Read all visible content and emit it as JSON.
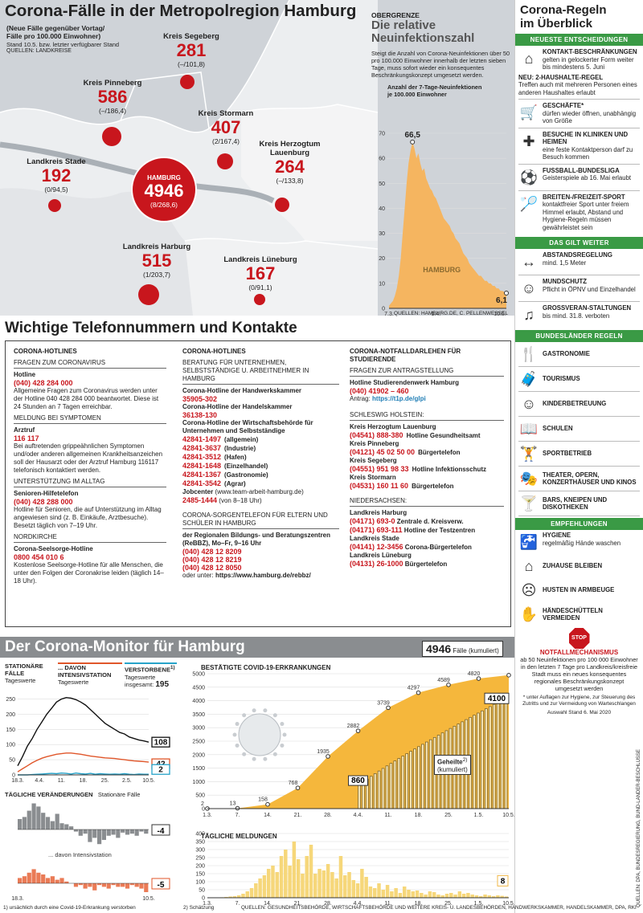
{
  "map": {
    "title": "Corona-Fälle in der Metropolregion Hamburg",
    "subtitle1": "(Neue Fälle gegenüber Vortag/",
    "subtitle2": "Fälle pro 100.000 Einwohner)",
    "stand": "Stand 10.5. bzw. letzter verfügbarer Stand",
    "source": "QUELLEN: LANDKREISE",
    "districts": [
      {
        "name": "Kreis Segeberg",
        "count": "281",
        "change": "(–/101,8)"
      },
      {
        "name": "Kreis Pinneberg",
        "count": "586",
        "change": "(–/186,4)"
      },
      {
        "name": "Kreis Stormarn",
        "count": "407",
        "change": "(2/167,4)"
      },
      {
        "name": "Kreis Herzogtum",
        "name2": "Lauenburg",
        "count": "264",
        "change": "(–/133,8)"
      },
      {
        "name": "Landkreis Stade",
        "count": "192",
        "change": "(0/94,5)"
      },
      {
        "name": "HAMBURG",
        "count": "4946",
        "change": "(8/268,6)"
      },
      {
        "name": "Landkreis Harburg",
        "count": "515",
        "change": "(1/203,7)"
      },
      {
        "name": "Landkreis Lüneburg",
        "count": "167",
        "change": "(0/91,1)"
      }
    ]
  },
  "incidence": {
    "kicker": "OBERGRENZE",
    "title1": "Die relative",
    "title2": "Neuinfektionszahl",
    "text": "Steigt die Anzahl von Corona-Neuinfektionen über 50 pro 100.000 Einwohner innerhalb der letzten sieben Tage, muss sofort wieder ein konsequentes Beschränkungskonzept umgesetzt werden.",
    "axis_label1": "Anzahl der 7-Tage-Neuinfektionen",
    "axis_label2": "je 100.000 Einwohner",
    "peak": "66,5",
    "last": "6,1",
    "area_label": "HAMBURG",
    "source": "QUELLEN: HAMBURG.DE, C. PELLENWESSEL"
  },
  "rules": {
    "title1": "Corona-Regeln",
    "title2": "im Überblick",
    "h_new": "NEUESTE ENTSCHEIDUNGEN",
    "items_new": [
      {
        "icon": "houses-icon",
        "title": "KONTAKT-BESCHRÄNKUNGEN",
        "text": "gelten in gelockerter Form weiter bis mindestens 5. Juni"
      },
      {
        "icon": "",
        "title": "NEU: 2-HAUSHALTE-REGEL",
        "text": "Treffen auch mit mehreren Personen eines anderen Haushaltes erlaubt"
      },
      {
        "icon": "cart-icon",
        "title": "GESCHÄFTE*",
        "text": "dürfen wieder öffnen, unabhängig von Größe"
      },
      {
        "icon": "hospital-icon",
        "title": "BESUCHE IN KLINIKEN UND HEIMEN",
        "text": "eine feste Kontaktperson darf zu Besuch kommen"
      },
      {
        "icon": "soccer-icon",
        "title": "FUSSBALL-BUNDESLIGA",
        "text": "Geisterspiele ab 16. Mai erlaubt"
      },
      {
        "icon": "badminton-icon",
        "title": "BREITEN-/FREIZEIT-SPORT",
        "text": "kontaktfreier Sport unter freiem Himmel erlaubt, Abstand und Hygiene-Regeln müssen gewährleistet sein"
      }
    ],
    "h_still": "DAS GILT WEITER",
    "items_still": [
      {
        "icon": "distance-icon",
        "title": "ABSTANDSREGELUNG",
        "text": "mind. 1,5 Meter"
      },
      {
        "icon": "mask-icon",
        "title": "MUNDSCHUTZ",
        "text": "Pflicht in ÖPNV und Einzelhandel"
      },
      {
        "icon": "crowd-icon",
        "title": "GROSSVERAN-STALTUNGEN",
        "text": "bis mind. 31.8. verboten"
      }
    ],
    "h_states": "BUNDESLÄNDER REGELN",
    "states": [
      {
        "icon": "dining-icon",
        "label": "GASTRONOMIE"
      },
      {
        "icon": "suitcase-icon",
        "label": "TOURISMUS"
      },
      {
        "icon": "child-icon",
        "label": "KINDERBETREUUNG"
      },
      {
        "icon": "book-icon",
        "label": "SCHULEN"
      },
      {
        "icon": "gym-icon",
        "label": "SPORTBETRIEB"
      },
      {
        "icon": "theater-icon",
        "label": "THEATER, OPERN, KONZERTHÄUSER UND KINOS"
      },
      {
        "icon": "cocktail-icon",
        "label": "BARS, KNEIPEN UND DISKOTHEKEN"
      }
    ],
    "h_recommend": "EMPFEHLUNGEN",
    "recommend": [
      {
        "icon": "handwash-icon",
        "title": "HYGIENE",
        "text": "regelmäßig Hände waschen"
      },
      {
        "icon": "home-icon",
        "title": "ZUHAUSE BLEIBEN",
        "text": ""
      },
      {
        "icon": "sneeze-icon",
        "title": "HUSTEN IN ARMBEUGE",
        "text": ""
      },
      {
        "icon": "handshake-icon",
        "title": "HÄNDESCHÜTTELN VERMEIDEN",
        "text": ""
      }
    ],
    "stop": "STOP",
    "emergency_title": "NOTFALLMECHANISMUS",
    "emergency_text": "ab 50 Neuinfektionen pro 100 000 Einwohner in den letzten 7 Tage pro Landkreis/kreisfreie Stadt muss ein neues konsequentes regionales Beschränkungskonzept umgesetzt werden",
    "footnote": "* unter Auflagen zur Hygiene, zur Steuerung des Zutritts und zur Vermeidung von Warteschlangen",
    "selection": "Auswahl Stand 6. Mai 2020",
    "side_source": "QUELLEN: DPA, BUNDESREGIERUNG, BUND-LÄNDER-BESCHLÜSSE"
  },
  "phones": {
    "title": "Wichtige Telefonnummern und Kontakte",
    "col1": {
      "head": "CORONA-HOTLINES",
      "s1": "FRAGEN ZUM CORONAVIRUS",
      "hotline_label": "Hotline",
      "hotline": "(040) 428 284 000",
      "hotline_text": "Allgemeine Fragen zum Coronavirus werden unter der Hotline 040 428 284 000 beantwortet. Diese ist 24 Stunden an 7 Tagen erreichbar.",
      "s2": "MELDUNG BEI SYMPTOMEN",
      "arzt_label": "Arztruf",
      "arzt": "116 117",
      "arzt_text": "Bei auftretenden grippeähnlichen Symptomen und/oder anderen allgemeinen Krankheitsanzeichen soll der Hausarzt oder der Arztruf Hamburg 116117 telefonisch kontaktiert werden.",
      "s3": "UNTERSTÜTZUNG IM ALLTAG",
      "senior_label": "Senioren-Hilfetelefon",
      "senior": "(040) 428 288 000",
      "senior_text": "Hotline für Senioren, die auf Unterstützung im Alltag angewiesen sind (z. B. Einkäufe, Arztbesuche). Besetzt täglich von 7–19 Uhr.",
      "s4": "NORDKIRCHE",
      "seel_label": "Corona-Seelsorge-Hotline",
      "seel": "0800 454 010 6",
      "seel_text": "Kostenlose Seelsorge-Hotline für alle Menschen, die unter den Folgen der Coronakrise leiden (täglich 14–18 Uhr)."
    },
    "col2": {
      "head": "CORONA-HOTLINES",
      "s1": "BERATUNG FÜR UNTERNEHMEN, SELBSTSTÄNDIGE U. ARBEITNEHMER IN HAMBURG",
      "hk_label": "Corona-Hotline der Handwerkskammer",
      "hk": "35905-302",
      "hdk_label": "Corona-Hotline der Handelskammer",
      "hdk": "36138-130",
      "wb_label": "Corona-Hotline der Wirtschaftsbehörde für Unternehmen und Selbstständige",
      "wb": [
        {
          "n": "42841-1497",
          "t": "(allgemein)"
        },
        {
          "n": "42841-3637",
          "t": "(Industrie)"
        },
        {
          "n": "42841-3512",
          "t": "(Hafen)"
        },
        {
          "n": "42841-1648",
          "t": "(Einzelhandel)"
        },
        {
          "n": "42841-1367",
          "t": "(Gastronomie)"
        },
        {
          "n": "42841-3542",
          "t": "(Agrar)"
        }
      ],
      "jc_label": "Jobcenter",
      "jc_url": "(www.team-arbeit-hamburg.de)",
      "jc": "2485-1444",
      "jc_time": "(von 8–18 Uhr)",
      "s2": "CORONA-SORGENTELEFON FÜR ELTERN UND SCHÜLER IN HAMBURG",
      "rebbz_label": "der Regionalen Bildungs- und Beratungszentren (ReBBZ), Mo–Fr, 9–16 Uhr",
      "rebbz": [
        "(040) 428 12 8209",
        "(040) 428 12 8219",
        "(040) 428 12 8050"
      ],
      "rebbz_more": "oder unter:",
      "rebbz_url": "https://www.hamburg.de/rebbz/"
    },
    "col3": {
      "head": "CORONA-NOTFALLDARLEHEN FÜR STUDIERENDE",
      "s1": "FRAGEN ZUR ANTRAGSTELLUNG",
      "stw_label": "Hotline Studierendenwerk Hamburg",
      "stw": "(040) 41902 – 460",
      "antrag_label": "Antrag:",
      "antrag_url": "https://t1p.de/glpi",
      "s2": "SCHLESWIG HOLSTEIN:",
      "sh": [
        {
          "k": "Kreis Herzogtum Lauenburg",
          "n": "(04541) 888-380",
          "t": "Hotline Gesundheitsamt"
        },
        {
          "k": "Kreis Pinneberg",
          "n": "(04121) 45 02 50 00",
          "t": "Bürgertelefon"
        },
        {
          "k": "Kreis Segeberg",
          "n": "(04551) 951 98 33",
          "t": "Hotline Infektionsschutz"
        },
        {
          "k": "Kreis Stormarn",
          "n": "(04531) 160 11 60",
          "t": "Bürgertelefon"
        }
      ],
      "s3": "NIEDERSACHSEN:",
      "ns_harburg": "Landkreis Harburg",
      "ns_h1n": "(04171) 693-0",
      "ns_h1t": "Zentrale d. Kreisverw.",
      "ns_h2n": "(04171) 693-111",
      "ns_h2t": "Hotline der Testzentren",
      "ns_stade": "Landkreis Stade",
      "ns_sn": "(04141) 12-3456",
      "ns_st": "Corona-Bürgertelefon",
      "ns_lg": "Landkreis Lüneburg",
      "ns_ln": "(04131) 26-1000",
      "ns_lt": "Bürgertelefon"
    }
  },
  "monitor": {
    "title": "Der Corona-Monitor für Hamburg",
    "total": "4946",
    "total_label": "Fälle (kumuliert)",
    "stat_label": "STATIONÄRE FÄLLE",
    "stat_sub": "Tageswerte",
    "icu_label": "... DAVON INTENSIVSTATION",
    "icu_sub": "Tageswerte",
    "dead_label": "VERSTORBENE",
    "dead_sup": "1)",
    "dead_sub": "Tageswerte",
    "dead_total_label": "insgesamt:",
    "dead_total": "195",
    "stat_end": "108",
    "icu_end": "42",
    "dead_end": "2",
    "change_label": "TÄGLICHE VERÄNDERUNGEN",
    "change_sub": "Stationäre Fälle",
    "change_stat_end": "-4",
    "change_icu_label": "... davon Intensivstation",
    "change_icu_end": "-5",
    "cases_label": "BESTÄTIGTE COVID-19-ERKRANKUNGEN",
    "recovered_label": "Geheilte",
    "recovered_sup": "2)",
    "recovered_sub": "(kumuliert)",
    "recovered_end": "4100",
    "recovered_mid": "860",
    "daily_label": "TÄGLICHE MELDUNGEN",
    "daily_end": "8",
    "footnote1": "1) ursächlich durch eine Covid-19-Erkrankung verstorben",
    "footnote2": "2) Schätzung",
    "source": "QUELLEN: GESUNDHEITSBEHÖRDE, WIRTSCHAFTSBEHÖRDE UND WEITERE KREIS- U. LANDESBEHÖRDEN, HANDWERKSKAMMER, HANDELSKAMMER, DPA, RKI"
  },
  "chart_data": [
    {
      "type": "area",
      "title": "Die relative Neuinfektionszahl",
      "ylabel": "Anzahl der 7-Tage-Neuinfektionen je 100.000 Einwohner",
      "xticks": [
        "7.3.",
        "1.4.",
        "10.5."
      ],
      "yticks": [
        0,
        10,
        20,
        30,
        40,
        50,
        60,
        70
      ],
      "ylim": [
        0,
        70
      ],
      "series": [
        {
          "name": "HAMBURG",
          "values": [
            1,
            2,
            3,
            5,
            8,
            13,
            20,
            30,
            40,
            50,
            58,
            63,
            66.5,
            64,
            60,
            62,
            58,
            55,
            56,
            52,
            50,
            48,
            47,
            45,
            44,
            42,
            40,
            38,
            36,
            35,
            34,
            33,
            31,
            30,
            28,
            27,
            26,
            24,
            22,
            21,
            20,
            18,
            17,
            16,
            15,
            14,
            13,
            13,
            12,
            11,
            11,
            10,
            10,
            9,
            9,
            8,
            8,
            7,
            7,
            6.5,
            6.1
          ]
        }
      ]
    },
    {
      "type": "line",
      "title": "STATIONÄRE FÄLLE",
      "xticks": [
        "18.3.",
        "4.4.",
        "11.",
        "18.",
        "25.",
        "2.5.",
        "10.5."
      ],
      "yticks": [
        0,
        50,
        100,
        150,
        200,
        250
      ],
      "ylim": [
        0,
        270
      ],
      "series": [
        {
          "name": "STATIONÄRE FÄLLE",
          "color": "#111",
          "values": [
            30,
            60,
            95,
            120,
            150,
            175,
            200,
            220,
            240,
            250,
            255,
            253,
            248,
            240,
            230,
            215,
            200,
            185,
            170,
            160,
            150,
            140,
            135,
            125,
            120,
            115,
            112,
            108
          ]
        },
        {
          "name": "DAVON INTENSIVSTATION",
          "color": "#e0562a",
          "values": [
            10,
            20,
            30,
            40,
            48,
            55,
            60,
            64,
            68,
            70,
            72,
            72,
            70,
            68,
            65,
            62,
            60,
            58,
            56,
            55,
            54,
            52,
            50,
            48,
            46,
            45,
            44,
            42
          ]
        },
        {
          "name": "VERSTORBENE",
          "color": "#27a3c9",
          "values": [
            0,
            0,
            0,
            1,
            2,
            3,
            4,
            5,
            4,
            6,
            5,
            3,
            6,
            4,
            3,
            5,
            2,
            4,
            3,
            2,
            3,
            2,
            4,
            2,
            1,
            3,
            2,
            2
          ]
        }
      ]
    },
    {
      "type": "bar",
      "title": "TÄGLICHE VERÄNDERUNGEN",
      "series": [
        {
          "name": "Stationäre Fälle",
          "values": [
            10,
            12,
            18,
            25,
            22,
            16,
            12,
            8,
            15,
            6,
            5,
            3,
            -2,
            -6,
            -4,
            -12,
            -8,
            -14,
            -10,
            -6,
            -5,
            -8,
            -3,
            -5,
            -4,
            -6,
            -2,
            -4
          ]
        },
        {
          "name": "... davon Intensivstation",
          "values": [
            3,
            4,
            6,
            8,
            6,
            5,
            3,
            4,
            2,
            3,
            1,
            0,
            -2,
            -1,
            -3,
            -2,
            -4,
            -1,
            -2,
            -3,
            -1,
            -2,
            -2,
            -3,
            -1,
            -2,
            -3,
            -5
          ]
        }
      ]
    },
    {
      "type": "area",
      "title": "BESTÄTIGTE COVID-19-ERKRANKUNGEN",
      "xticks": [
        "1.3.",
        "7.",
        "14.",
        "21.",
        "28.",
        "4.4.",
        "11.",
        "18.",
        "25.",
        "1.5.",
        "10.5."
      ],
      "yticks": [
        0,
        500,
        1000,
        1500,
        2000,
        2500,
        3000,
        3500,
        4000,
        4500,
        5000
      ],
      "ylim": [
        0,
        5000
      ],
      "series": [
        {
          "name": "Fälle (kumuliert)",
          "labels": [
            {
              "x": "1.3.",
              "v": 2
            },
            {
              "x": "7.",
              "v": 13
            },
            {
              "x": "14.",
              "v": 158
            },
            {
              "x": "21.",
              "v": 768
            },
            {
              "x": "28.",
              "v": 1935
            },
            {
              "x": "4.4.",
              "v": 2882
            },
            {
              "x": "11.",
              "v": 3739
            },
            {
              "x": "18.",
              "v": 4297
            },
            {
              "x": "25.",
              "v": 4589
            },
            {
              "x": "1.5.",
              "v": 4820
            },
            {
              "x": "10.5.",
              "v": 4946
            }
          ]
        },
        {
          "name": "Geheilte (kumuliert)",
          "labels": [
            {
              "x": "4.4.",
              "v": 860
            },
            {
              "x": "10.5.",
              "v": 4100
            }
          ]
        }
      ]
    },
    {
      "type": "bar",
      "title": "TÄGLICHE MELDUNGEN",
      "xticks": [
        "1.3.",
        "7.",
        "14.",
        "21.",
        "28.",
        "4.4.",
        "11.",
        "18.",
        "25.",
        "1.5.",
        "10.5."
      ],
      "yticks": [
        0,
        50,
        100,
        150,
        200,
        250,
        300,
        350,
        400
      ],
      "ylim": [
        0,
        400
      ],
      "values": [
        1,
        1,
        2,
        3,
        5,
        8,
        10,
        15,
        25,
        40,
        60,
        90,
        120,
        140,
        180,
        200,
        160,
        260,
        300,
        200,
        350,
        240,
        150,
        260,
        330,
        150,
        180,
        170,
        210,
        160,
        120,
        260,
        140,
        160,
        110,
        90,
        180,
        130,
        70,
        60,
        90,
        50,
        80,
        40,
        60,
        30,
        70,
        50,
        40,
        45,
        30,
        20,
        40,
        35,
        20,
        15,
        25,
        30,
        20,
        40,
        25,
        30,
        20,
        15,
        10,
        20,
        15,
        10,
        15,
        12,
        8
      ]
    }
  ]
}
